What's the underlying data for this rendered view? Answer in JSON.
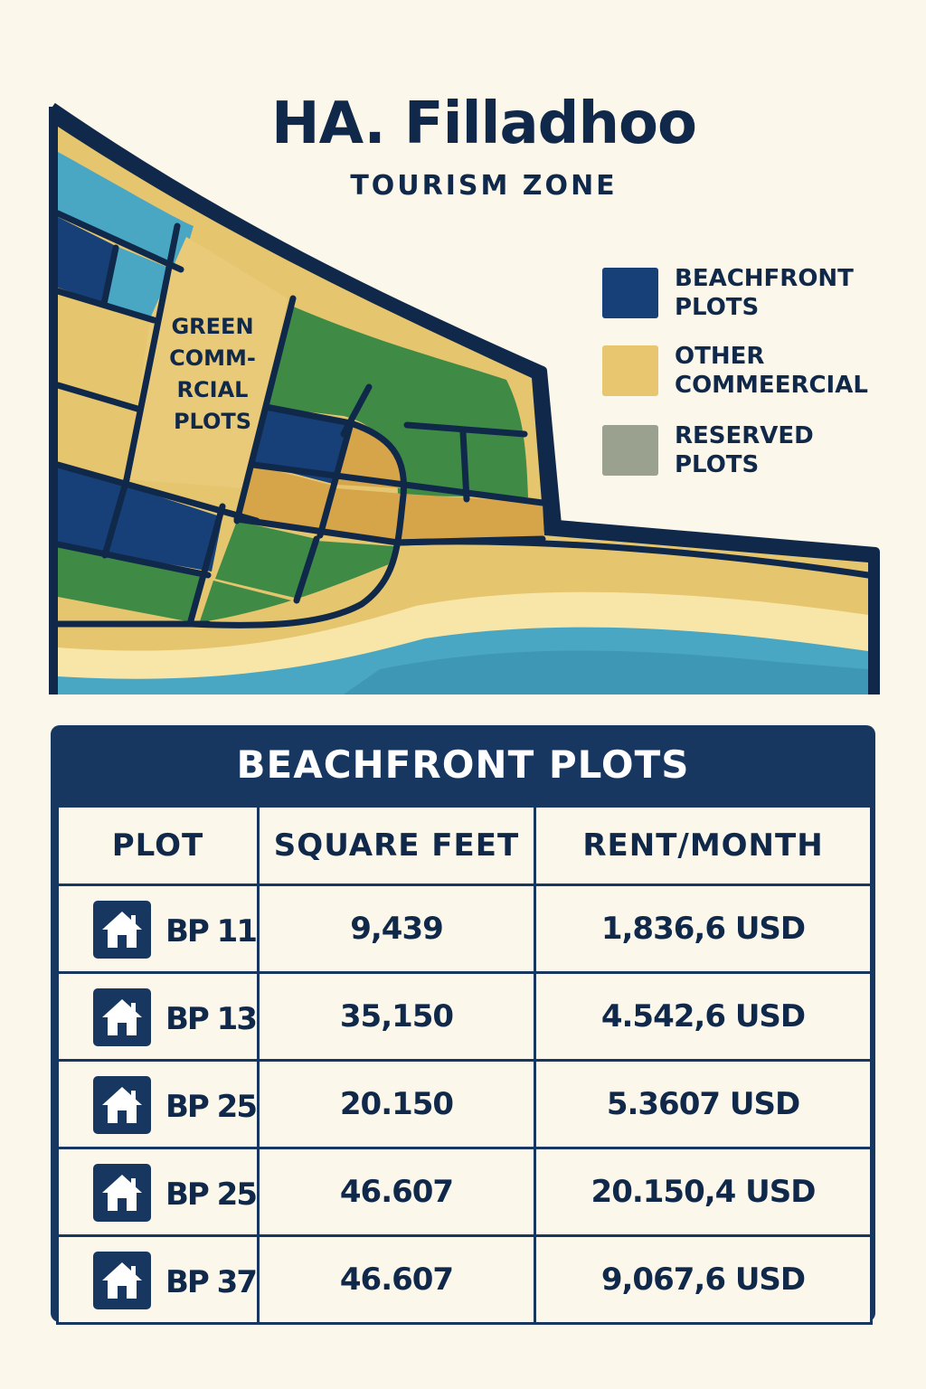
{
  "title": "HA. Filladhoo",
  "subtitle": "TOURISM ZONE",
  "map_label": "GREEN\nCOMM-\nRCIAL\nPLOTS",
  "legend": [
    {
      "label": "BEACHFRONT\nPLOTS",
      "color": "#173f78"
    },
    {
      "label": "OTHER\nCOMMEERCIAL",
      "color": "#e8c66f"
    },
    {
      "label": "RESERVED\nPLOTS",
      "color": "#9aa28f"
    }
  ],
  "colors": {
    "beachfront": "#173f78",
    "commercial": "#e8c66f",
    "green": "#3f8a45",
    "water": "#4aa7c3",
    "outline": "#10294a"
  },
  "table": {
    "title": "BEACHFRONT PLOTS",
    "headers": [
      "PLOT",
      "SQUARE FEET",
      "RENT/MONTH"
    ],
    "icon": "house-icon",
    "rows": [
      {
        "plot": "BP 11",
        "sqft": "9,439",
        "rent": "1,836,6 USD"
      },
      {
        "plot": "BP 13",
        "sqft": "35,150",
        "rent": "4.542,6 USD"
      },
      {
        "plot": "BP 25",
        "sqft": "20.150",
        "rent": "5.3607 USD"
      },
      {
        "plot": "BP 25",
        "sqft": "46.607",
        "rent": "20.150,4 USD"
      },
      {
        "plot": "BP 37",
        "sqft": "46.607",
        "rent": "9,067,6 USD"
      }
    ]
  }
}
